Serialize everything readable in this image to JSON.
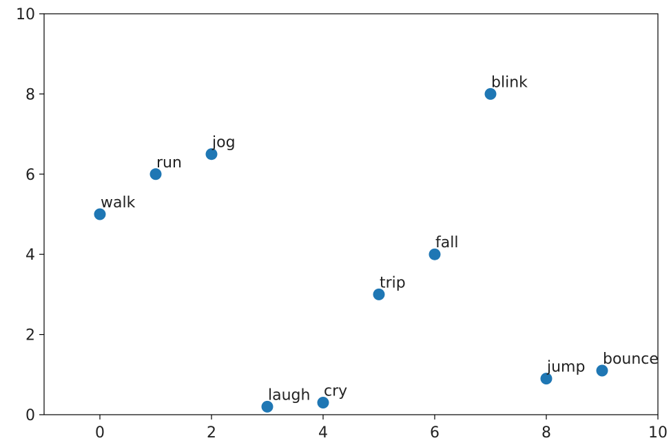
{
  "chart_data": {
    "type": "scatter",
    "title": "",
    "xlabel": "",
    "ylabel": "",
    "xlim": [
      -1,
      10
    ],
    "ylim": [
      0,
      10
    ],
    "x_ticks": [
      0,
      2,
      4,
      6,
      8,
      10
    ],
    "y_ticks": [
      0,
      2,
      4,
      6,
      8,
      10
    ],
    "x_tick_labels": [
      "0",
      "2",
      "4",
      "6",
      "8",
      "10"
    ],
    "y_tick_labels": [
      "0",
      "2",
      "4",
      "6",
      "8",
      "10"
    ],
    "grid": false,
    "marker_color": "#1f77b4",
    "points": [
      {
        "label": "walk",
        "x": 0,
        "y": 5
      },
      {
        "label": "run",
        "x": 1,
        "y": 6
      },
      {
        "label": "jog",
        "x": 2,
        "y": 6.5
      },
      {
        "label": "laugh",
        "x": 3,
        "y": 0.2
      },
      {
        "label": "cry",
        "x": 4,
        "y": 0.3
      },
      {
        "label": "trip",
        "x": 5,
        "y": 3
      },
      {
        "label": "fall",
        "x": 6,
        "y": 4
      },
      {
        "label": "blink",
        "x": 7,
        "y": 8
      },
      {
        "label": "jump",
        "x": 8,
        "y": 0.9
      },
      {
        "label": "bounce",
        "x": 9,
        "y": 1.1
      }
    ]
  }
}
